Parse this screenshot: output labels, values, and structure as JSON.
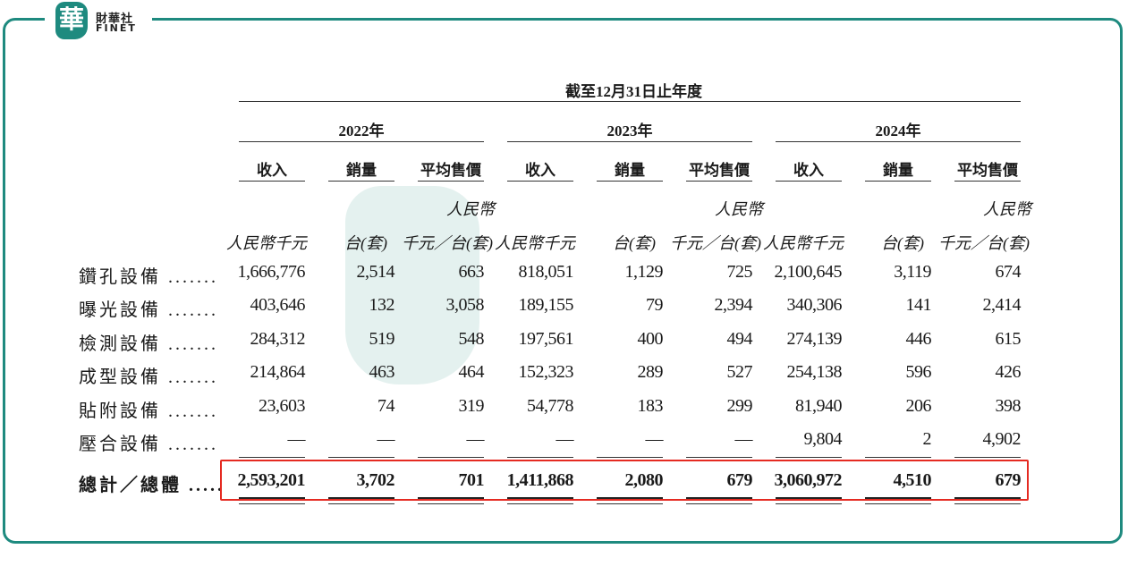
{
  "logo": {
    "mark": "華",
    "cn": "財華社",
    "en": "FINET"
  },
  "watermark": {
    "cn": "財華社",
    "en": "FINET"
  },
  "table": {
    "period_header": "截至12月31日止年度",
    "years": [
      "2022年",
      "2023年",
      "2024年"
    ],
    "metric_headers": [
      "收入",
      "銷量",
      "平均售價"
    ],
    "unit_top": "人民幣",
    "units": [
      "人民幣千元",
      "台(套)",
      "千元／台(套)"
    ],
    "rows": [
      {
        "label": "鑽孔設備 .......",
        "values": [
          "1,666,776",
          "2,514",
          "663",
          "818,051",
          "1,129",
          "725",
          "2,100,645",
          "3,119",
          "674"
        ]
      },
      {
        "label": "曝光設備 .......",
        "values": [
          "403,646",
          "132",
          "3,058",
          "189,155",
          "79",
          "2,394",
          "340,306",
          "141",
          "2,414"
        ]
      },
      {
        "label": "檢測設備 .......",
        "values": [
          "284,312",
          "519",
          "548",
          "197,561",
          "400",
          "494",
          "274,139",
          "446",
          "615"
        ]
      },
      {
        "label": "成型設備 .......",
        "values": [
          "214,864",
          "463",
          "464",
          "152,323",
          "289",
          "527",
          "254,138",
          "596",
          "426"
        ]
      },
      {
        "label": "貼附設備 .......",
        "values": [
          "23,603",
          "74",
          "319",
          "54,778",
          "183",
          "299",
          "81,940",
          "206",
          "398"
        ]
      },
      {
        "label": "壓合設備 .......",
        "values": [
          "—",
          "—",
          "—",
          "—",
          "—",
          "—",
          "9,804",
          "2",
          "4,902"
        ]
      }
    ],
    "total": {
      "label": "總計／總體 .....",
      "values": [
        "2,593,201",
        "3,702",
        "701",
        "1,411,868",
        "2,080",
        "679",
        "3,060,972",
        "4,510",
        "679"
      ]
    }
  },
  "colors": {
    "frame": "#1e8a7f",
    "highlight": "#e52a21"
  }
}
